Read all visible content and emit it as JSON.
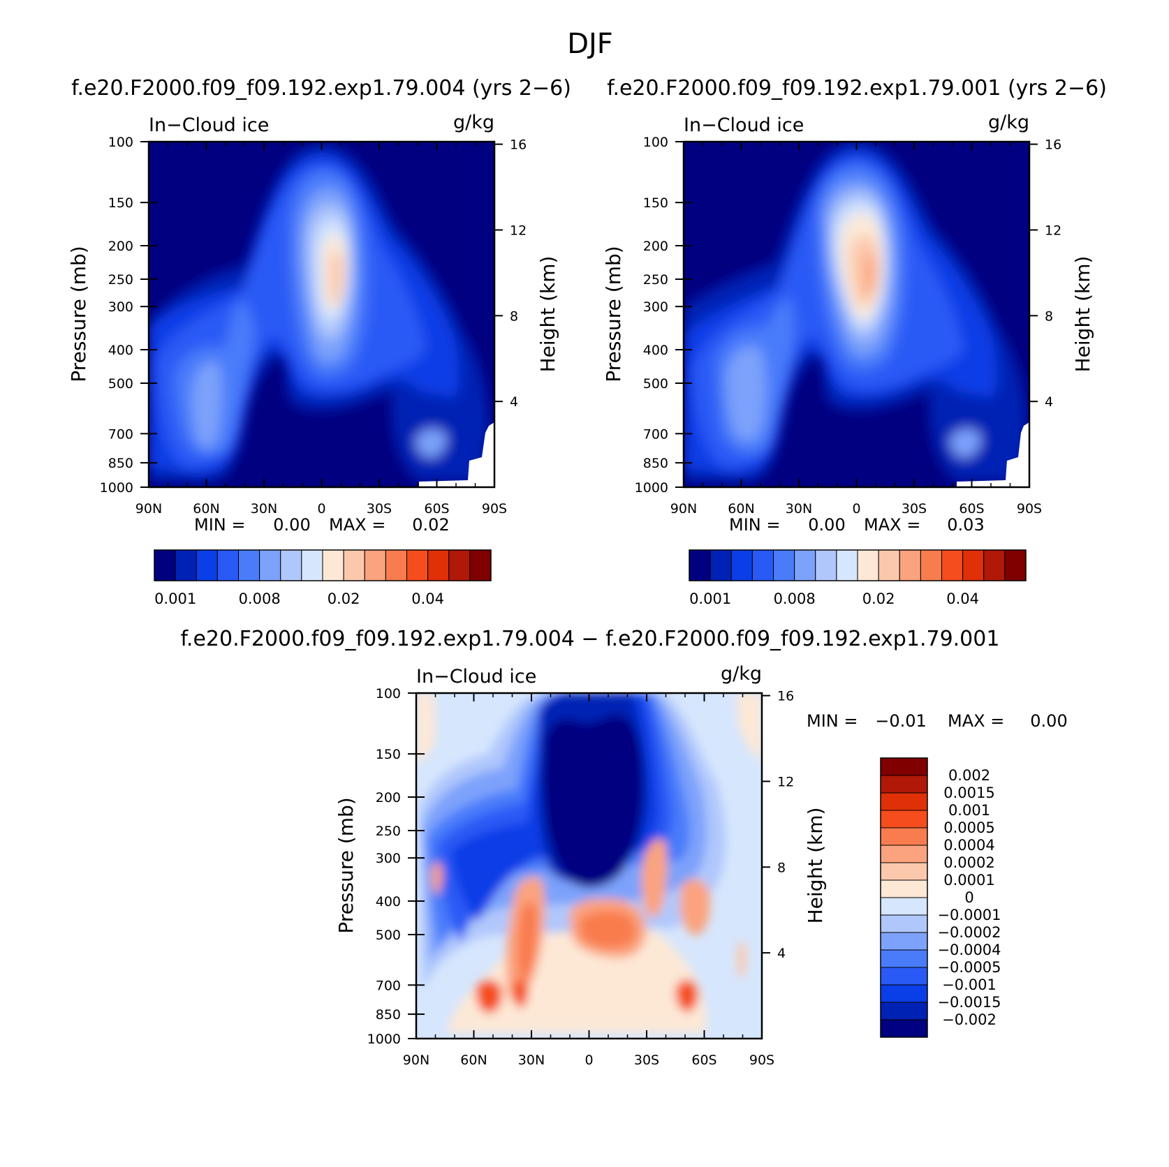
{
  "figure": {
    "title": "DJF",
    "panel_a_title": "f.e20.F2000.f09_f09.192.exp1.79.004 (yrs 2−6)",
    "panel_b_title": "f.e20.F2000.f09_f09.192.exp1.79.001 (yrs 2−6)",
    "panel_c_title": "f.e20.F2000.f09_f09.192.exp1.79.004 − f.e20.F2000.f09_f09.192.exp1.79.001"
  },
  "chart_data": [
    {
      "id": "panel_a",
      "type": "heatmap",
      "variable": "In−Cloud ice",
      "units": "g/kg",
      "xlabel": "",
      "ylabel": "Pressure (mb)",
      "y2label": "Height (km)",
      "x_ticks": [
        "90N",
        "60N",
        "30N",
        "0",
        "30S",
        "60S",
        "90S"
      ],
      "y_ticks": [
        "100",
        "150",
        "200",
        "250",
        "300",
        "400",
        "500",
        "700",
        "850",
        "1000"
      ],
      "y2_ticks": [
        "16",
        "12",
        "8",
        "4"
      ],
      "min_label": "MIN =",
      "min_value": "0.00",
      "max_label": "MAX =",
      "max_value": "0.02",
      "colorbar_levels": [
        0.001,
        0.002,
        0.004,
        0.006,
        0.008,
        0.01,
        0.015,
        0.02,
        0.025,
        0.03,
        0.035,
        0.04,
        0.045,
        0.05
      ],
      "colorbar_labels": [
        "0.001",
        "0.008",
        "0.02",
        "0.04"
      ],
      "features": [
        {
          "lat": 10,
          "pressure": 260,
          "value": 0.022
        },
        {
          "lat": 50,
          "pressure": 520,
          "value": 0.007
        },
        {
          "lat": 40,
          "pressure": 350,
          "value": 0.006
        },
        {
          "lat": -55,
          "pressure": 780,
          "value": 0.007
        }
      ]
    },
    {
      "id": "panel_b",
      "type": "heatmap",
      "variable": "In−Cloud ice",
      "units": "g/kg",
      "xlabel": "",
      "ylabel": "Pressure (mb)",
      "y2label": "Height (km)",
      "x_ticks": [
        "90N",
        "60N",
        "30N",
        "0",
        "30S",
        "60S",
        "90S"
      ],
      "y_ticks": [
        "100",
        "150",
        "200",
        "250",
        "300",
        "400",
        "500",
        "700",
        "850",
        "1000"
      ],
      "y2_ticks": [
        "16",
        "12",
        "8",
        "4"
      ],
      "min_label": "MIN =",
      "min_value": "0.00",
      "max_label": "MAX =",
      "max_value": "0.03",
      "colorbar_levels": [
        0.001,
        0.002,
        0.004,
        0.006,
        0.008,
        0.01,
        0.015,
        0.02,
        0.025,
        0.03,
        0.035,
        0.04,
        0.045,
        0.05
      ],
      "colorbar_labels": [
        "0.001",
        "0.008",
        "0.02",
        "0.04"
      ],
      "features": [
        {
          "lat": 8,
          "pressure": 250,
          "value": 0.026
        },
        {
          "lat": 50,
          "pressure": 500,
          "value": 0.007
        },
        {
          "lat": -55,
          "pressure": 780,
          "value": 0.007
        }
      ]
    },
    {
      "id": "panel_c",
      "type": "heatmap",
      "variable": "In−Cloud ice",
      "units": "g/kg",
      "xlabel": "",
      "ylabel": "Pressure (mb)",
      "y2label": "Height (km)",
      "x_ticks": [
        "90N",
        "60N",
        "30N",
        "0",
        "30S",
        "60S",
        "90S"
      ],
      "y_ticks": [
        "100",
        "150",
        "200",
        "250",
        "300",
        "400",
        "500",
        "700",
        "850",
        "1000"
      ],
      "y2_ticks": [
        "16",
        "12",
        "8",
        "4"
      ],
      "min_label": "MIN =",
      "min_value": "−0.01",
      "max_label": "MAX =",
      "max_value": "0.00",
      "colorbar_levels": [
        -0.002,
        -0.0015,
        -0.001,
        -0.0005,
        -0.0004,
        -0.0002,
        -0.0001,
        0,
        0.0001,
        0.0002,
        0.0004,
        0.0005,
        0.001,
        0.0015,
        0.002
      ],
      "colorbar_labels": [
        "0.002",
        "0.0015",
        "0.001",
        "0.0005",
        "0.0004",
        "0.0002",
        "0.0001",
        "0",
        "−0.0001",
        "−0.0002",
        "−0.0004",
        "−0.0005",
        "−0.001",
        "−0.0015",
        "−0.002"
      ],
      "features": [
        {
          "lat": 5,
          "pressure": 200,
          "value": -0.003
        },
        {
          "lat": -10,
          "pressure": 520,
          "value": 0.0015
        },
        {
          "lat": 35,
          "pressure": 430,
          "value": 0.001
        },
        {
          "lat": 50,
          "pressure": 750,
          "value": 0.0015
        },
        {
          "lat": -50,
          "pressure": 750,
          "value": 0.0015
        },
        {
          "lat": 65,
          "pressure": 400,
          "value": -0.0015
        },
        {
          "lat": -35,
          "pressure": 350,
          "value": 0.001
        }
      ]
    }
  ],
  "colors": {
    "panel_scale": [
      "#000080",
      "#0022b4",
      "#0a3ee6",
      "#2a5af5",
      "#4a7cfa",
      "#7da2fb",
      "#b0c7fc",
      "#d6e6fd",
      "#fde8d6",
      "#fcc8ac",
      "#fba37e",
      "#f97c4e",
      "#f54d1e",
      "#e03008",
      "#b01808",
      "#800000"
    ],
    "diff_scale": [
      "#000080",
      "#0022b4",
      "#0a3ee6",
      "#2a5af5",
      "#4a7cfa",
      "#7da2fb",
      "#b0c7fc",
      "#d6e6fd",
      "#fde8d6",
      "#fcc8ac",
      "#fba37e",
      "#f97c4e",
      "#f54d1e",
      "#e03008",
      "#b01808",
      "#800000"
    ]
  }
}
